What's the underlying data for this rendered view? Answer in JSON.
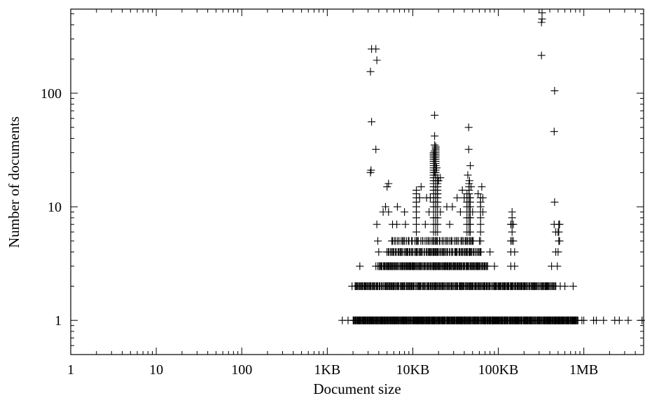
{
  "chart_data": {
    "type": "scatter",
    "marker": "plus",
    "color": "#000000",
    "xlabel": "Document size",
    "ylabel": "Number of documents",
    "x_scale": "log",
    "y_scale": "log",
    "xlim": [
      1,
      5000000
    ],
    "ylim": [
      0.5,
      550
    ],
    "x_ticks": [
      {
        "value": 1,
        "label": "1"
      },
      {
        "value": 10,
        "label": "10"
      },
      {
        "value": 100,
        "label": "100"
      },
      {
        "value": 1000,
        "label": "1KB"
      },
      {
        "value": 10000,
        "label": "10KB"
      },
      {
        "value": 100000,
        "label": "100KB"
      },
      {
        "value": 1000000,
        "label": "1MB"
      }
    ],
    "y_ticks": [
      {
        "value": 1,
        "label": "1"
      },
      {
        "value": 10,
        "label": "10"
      },
      {
        "value": 100,
        "label": "100"
      }
    ],
    "grid": false,
    "dense_rows": [
      {
        "y": 1,
        "x_from": 2000,
        "x_to": 850000,
        "n": 420
      },
      {
        "y": 2,
        "x_from": 2100,
        "x_to": 470000,
        "n": 260
      },
      {
        "y": 3,
        "x_from": 4000,
        "x_to": 75000,
        "n": 150
      },
      {
        "y": 4,
        "x_from": 5000,
        "x_to": 62000,
        "n": 90
      },
      {
        "y": 5,
        "x_from": 5600,
        "x_to": 52000,
        "n": 55
      }
    ],
    "points": [
      {
        "x": 1500,
        "y": 1
      },
      {
        "x": 1750,
        "y": 1
      },
      {
        "x": 950000,
        "y": 1
      },
      {
        "x": 1000000,
        "y": 1
      },
      {
        "x": 1300000,
        "y": 1
      },
      {
        "x": 1400000,
        "y": 1
      },
      {
        "x": 1700000,
        "y": 1
      },
      {
        "x": 2300000,
        "y": 1
      },
      {
        "x": 2600000,
        "y": 1
      },
      {
        "x": 3300000,
        "y": 1
      },
      {
        "x": 4800000,
        "y": 1
      },
      {
        "x": 1950,
        "y": 2
      },
      {
        "x": 530000,
        "y": 2
      },
      {
        "x": 600000,
        "y": 2
      },
      {
        "x": 750000,
        "y": 2
      },
      {
        "x": 2400,
        "y": 3
      },
      {
        "x": 3700,
        "y": 3
      },
      {
        "x": 3900,
        "y": 3
      },
      {
        "x": 90000,
        "y": 3
      },
      {
        "x": 140000,
        "y": 3
      },
      {
        "x": 155000,
        "y": 3
      },
      {
        "x": 420000,
        "y": 3
      },
      {
        "x": 490000,
        "y": 3
      },
      {
        "x": 4000,
        "y": 4
      },
      {
        "x": 80000,
        "y": 4
      },
      {
        "x": 140000,
        "y": 4
      },
      {
        "x": 155000,
        "y": 4
      },
      {
        "x": 470000,
        "y": 4
      },
      {
        "x": 500000,
        "y": 4
      },
      {
        "x": 3900,
        "y": 5
      },
      {
        "x": 60000,
        "y": 5
      },
      {
        "x": 140000,
        "y": 5
      },
      {
        "x": 150000,
        "y": 5
      },
      {
        "x": 3800,
        "y": 7
      },
      {
        "x": 5800,
        "y": 7
      },
      {
        "x": 6500,
        "y": 7
      },
      {
        "x": 8200,
        "y": 7
      },
      {
        "x": 14000,
        "y": 7
      },
      {
        "x": 27000,
        "y": 7
      },
      {
        "x": 140000,
        "y": 7
      },
      {
        "x": 150000,
        "y": 7
      },
      {
        "x": 450000,
        "y": 7
      },
      {
        "x": 520000,
        "y": 7
      },
      {
        "x": 4500,
        "y": 9
      },
      {
        "x": 5200,
        "y": 9
      },
      {
        "x": 8000,
        "y": 9
      },
      {
        "x": 11000,
        "y": 9
      },
      {
        "x": 15500,
        "y": 9
      },
      {
        "x": 21000,
        "y": 9
      },
      {
        "x": 36000,
        "y": 9
      },
      {
        "x": 50000,
        "y": 9
      },
      {
        "x": 66000,
        "y": 9
      },
      {
        "x": 145000,
        "y": 9
      },
      {
        "x": 4800,
        "y": 10
      },
      {
        "x": 6600,
        "y": 10
      },
      {
        "x": 25000,
        "y": 10
      },
      {
        "x": 29000,
        "y": 10
      },
      {
        "x": 5000,
        "y": 15
      },
      {
        "x": 5200,
        "y": 16
      },
      {
        "x": 12000,
        "y": 12
      },
      {
        "x": 12500,
        "y": 15
      },
      {
        "x": 14500,
        "y": 12
      },
      {
        "x": 16000,
        "y": 12
      },
      {
        "x": 33000,
        "y": 12
      },
      {
        "x": 38000,
        "y": 14
      },
      {
        "x": 40000,
        "y": 12
      },
      {
        "x": 58000,
        "y": 13
      },
      {
        "x": 64000,
        "y": 15
      },
      {
        "x": 66000,
        "y": 12
      },
      {
        "x": 3200,
        "y": 20
      },
      {
        "x": 3250,
        "y": 21
      },
      {
        "x": 3700,
        "y": 32
      },
      {
        "x": 3300,
        "y": 56
      },
      {
        "x": 3200,
        "y": 155
      },
      {
        "x": 3800,
        "y": 195
      },
      {
        "x": 3300,
        "y": 245
      },
      {
        "x": 3700,
        "y": 245
      },
      {
        "x": 18000,
        "y": 20
      },
      {
        "x": 18000,
        "y": 24
      },
      {
        "x": 18000,
        "y": 28
      },
      {
        "x": 18000,
        "y": 31
      },
      {
        "x": 18000,
        "y": 35
      },
      {
        "x": 18000,
        "y": 42
      },
      {
        "x": 18000,
        "y": 64
      },
      {
        "x": 19000,
        "y": 22
      },
      {
        "x": 20000,
        "y": 17
      },
      {
        "x": 21000,
        "y": 18
      },
      {
        "x": 19500,
        "y": 13
      },
      {
        "x": 44000,
        "y": 19
      },
      {
        "x": 45000,
        "y": 32
      },
      {
        "x": 45000,
        "y": 50
      },
      {
        "x": 47000,
        "y": 23
      },
      {
        "x": 46000,
        "y": 17
      },
      {
        "x": 48000,
        "y": 15
      },
      {
        "x": 320000,
        "y": 215
      },
      {
        "x": 320000,
        "y": 420
      },
      {
        "x": 325000,
        "y": 450
      },
      {
        "x": 325000,
        "y": 510
      },
      {
        "x": 455000,
        "y": 105
      },
      {
        "x": 450000,
        "y": 46
      },
      {
        "x": 455000,
        "y": 11
      },
      {
        "x": 470000,
        "y": 6
      },
      {
        "x": 500000,
        "y": 6
      },
      {
        "x": 520000,
        "y": 5
      }
    ],
    "columns": [
      {
        "x": 11000,
        "y_from": 4,
        "y_to": 14
      },
      {
        "x": 17500,
        "y_from": 3,
        "y_to": 30
      },
      {
        "x": 18500,
        "y_from": 3,
        "y_to": 34
      },
      {
        "x": 19500,
        "y_from": 4,
        "y_to": 18
      },
      {
        "x": 43000,
        "y_from": 4,
        "y_to": 13
      },
      {
        "x": 45500,
        "y_from": 4,
        "y_to": 16
      },
      {
        "x": 47000,
        "y_from": 4,
        "y_to": 12
      },
      {
        "x": 62000,
        "y_from": 4,
        "y_to": 12
      },
      {
        "x": 145000,
        "y_from": 5,
        "y_to": 8
      },
      {
        "x": 510000,
        "y_from": 5,
        "y_to": 7
      }
    ]
  }
}
